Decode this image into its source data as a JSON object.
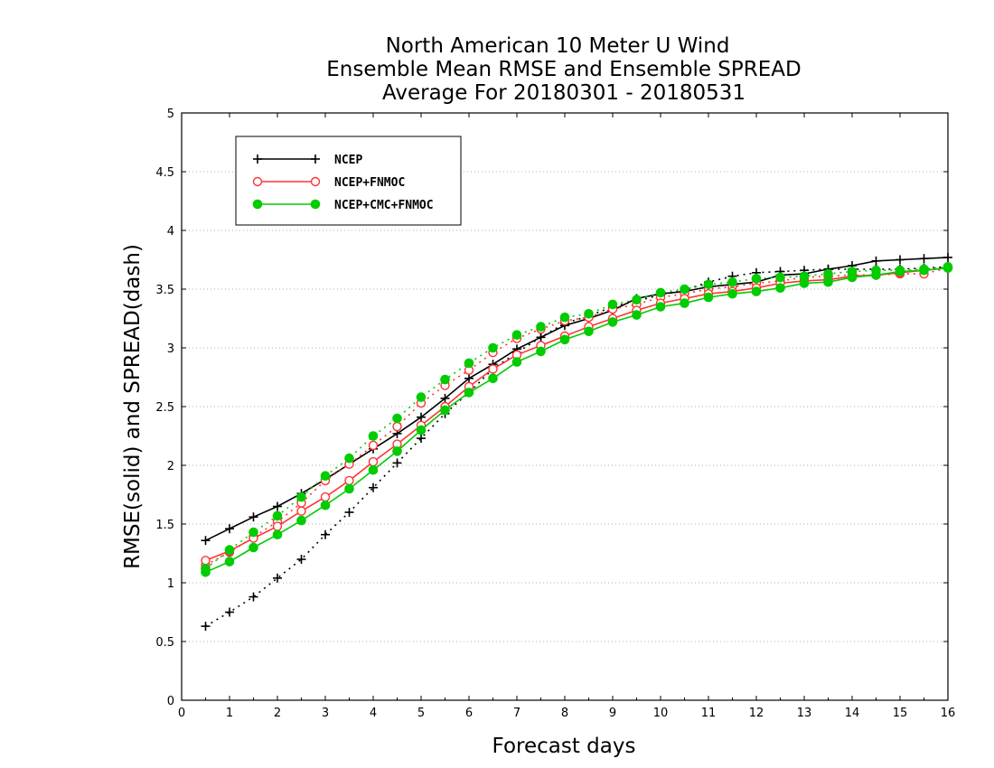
{
  "chart_data": {
    "type": "line",
    "title_lines": [
      "North American 10 Meter U Wind",
      "Ensemble Mean RMSE and Ensemble SPREAD",
      "Average For 20180301 - 20180531"
    ],
    "xlabel": "Forecast days",
    "ylabel": "RMSE(solid) and SPREAD(dash)",
    "xlim": [
      0,
      16
    ],
    "ylim": [
      0,
      5
    ],
    "x_ticks": [
      "0",
      "1",
      "2",
      "3",
      "4",
      "5",
      "6",
      "7",
      "8",
      "9",
      "10",
      "11",
      "12",
      "13",
      "14",
      "15",
      "16"
    ],
    "y_ticks": [
      "0",
      "0.5",
      "1",
      "1.5",
      "2",
      "2.5",
      "3",
      "3.5",
      "4",
      "4.5",
      "5"
    ],
    "grid": "dotted horizontal",
    "legend_position": "top-left",
    "x": [
      0.5,
      1,
      1.5,
      2,
      2.5,
      3,
      3.5,
      4,
      4.5,
      5,
      5.5,
      6,
      6.5,
      7,
      7.5,
      8,
      8.5,
      9,
      9.5,
      10,
      10.5,
      11,
      11.5,
      12,
      12.5,
      13,
      13.5,
      14,
      14.5,
      15,
      15.5,
      16
    ],
    "series": [
      {
        "name": "NCEP",
        "color": "#000000",
        "marker": "plus",
        "rmse": [
          1.36,
          1.46,
          1.56,
          1.65,
          1.76,
          1.88,
          2.01,
          2.14,
          2.27,
          2.41,
          2.57,
          2.74,
          2.86,
          2.99,
          3.09,
          3.19,
          3.25,
          3.32,
          3.42,
          3.46,
          3.48,
          3.52,
          3.54,
          3.56,
          3.62,
          3.63,
          3.67,
          3.7,
          3.74,
          3.75,
          3.76,
          3.77
        ],
        "spread": [
          0.63,
          0.75,
          0.88,
          1.04,
          1.2,
          1.41,
          1.6,
          1.81,
          2.02,
          2.23,
          2.44,
          2.62,
          2.82,
          2.96,
          3.09,
          3.21,
          3.27,
          3.35,
          3.4,
          3.45,
          3.49,
          3.56,
          3.61,
          3.64,
          3.65,
          3.66,
          3.67,
          3.67,
          3.67,
          3.67,
          3.68,
          3.69
        ]
      },
      {
        "name": "NCEP+FNMOC",
        "color": "#ff3333",
        "marker": "open-circle",
        "rmse": [
          1.19,
          1.27,
          1.38,
          1.48,
          1.61,
          1.73,
          1.87,
          2.03,
          2.18,
          2.34,
          2.5,
          2.67,
          2.82,
          2.94,
          3.02,
          3.1,
          3.18,
          3.25,
          3.32,
          3.38,
          3.42,
          3.46,
          3.48,
          3.51,
          3.55,
          3.57,
          3.58,
          3.61,
          3.62,
          3.64,
          3.66,
          3.68
        ],
        "spread": [
          1.15,
          1.26,
          1.39,
          1.52,
          1.68,
          1.87,
          2.01,
          2.17,
          2.33,
          2.53,
          2.68,
          2.81,
          2.96,
          3.08,
          3.16,
          3.23,
          3.26,
          3.33,
          3.37,
          3.43,
          3.46,
          3.5,
          3.52,
          3.55,
          3.57,
          3.6,
          3.61,
          3.62,
          3.62,
          3.63,
          3.63,
          3.68
        ]
      },
      {
        "name": "NCEP+CMC+FNMOC",
        "color": "#00cc00",
        "marker": "filled-circle",
        "rmse": [
          1.09,
          1.18,
          1.3,
          1.41,
          1.53,
          1.66,
          1.8,
          1.96,
          2.12,
          2.3,
          2.47,
          2.62,
          2.74,
          2.88,
          2.97,
          3.07,
          3.14,
          3.22,
          3.28,
          3.35,
          3.38,
          3.43,
          3.46,
          3.48,
          3.51,
          3.55,
          3.56,
          3.6,
          3.62,
          3.65,
          3.66,
          3.68
        ],
        "spread": [
          1.12,
          1.28,
          1.43,
          1.57,
          1.73,
          1.91,
          2.06,
          2.25,
          2.4,
          2.58,
          2.73,
          2.87,
          3.0,
          3.11,
          3.18,
          3.26,
          3.29,
          3.37,
          3.41,
          3.47,
          3.5,
          3.54,
          3.56,
          3.59,
          3.6,
          3.61,
          3.63,
          3.65,
          3.66,
          3.66,
          3.67,
          3.69
        ]
      }
    ]
  }
}
